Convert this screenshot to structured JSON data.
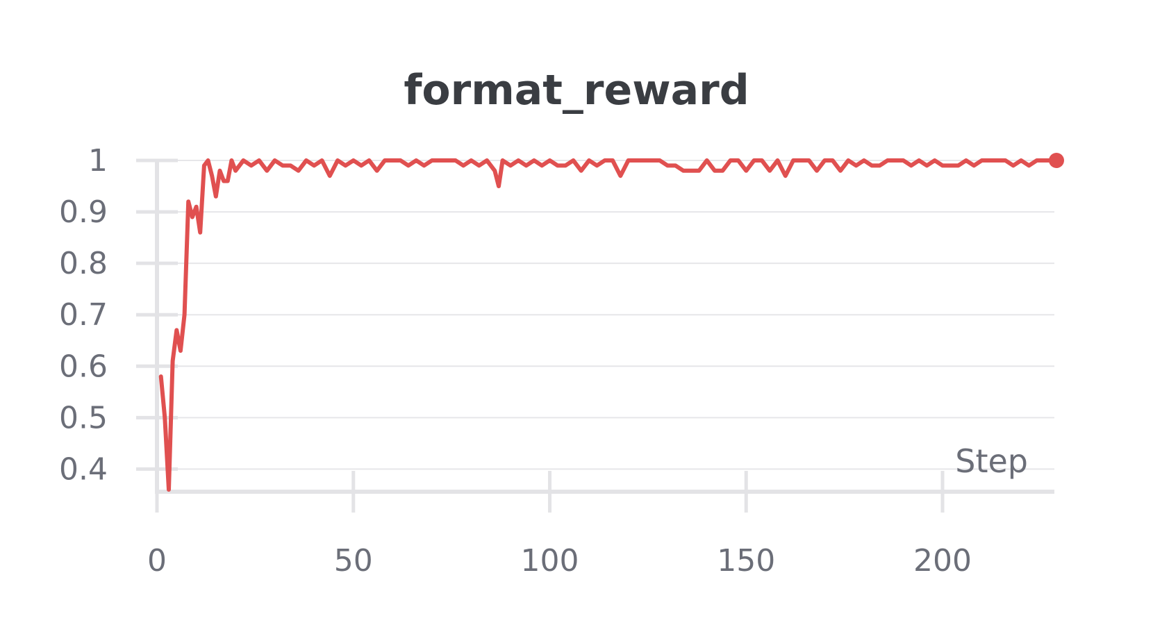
{
  "chart_data": {
    "type": "line",
    "title": "format_reward",
    "xlabel": "Step",
    "ylabel": "",
    "xlim": [
      0,
      229
    ],
    "ylim": [
      0.36,
      1
    ],
    "x_ticks": [
      0,
      50,
      100,
      150,
      200
    ],
    "y_ticks": [
      0.4,
      0.5,
      0.6,
      0.7,
      0.8,
      0.9,
      1
    ],
    "y_tick_labels": [
      "0.4",
      "0.5",
      "0.6",
      "0.7",
      "0.8",
      "0.9",
      "1"
    ],
    "grid": true,
    "legend": "none",
    "series": [
      {
        "color": "#e05050",
        "x": [
          1,
          2,
          3,
          4,
          5,
          6,
          7,
          8,
          9,
          10,
          11,
          12,
          13,
          14,
          15,
          16,
          17,
          18,
          19,
          20,
          22,
          24,
          26,
          28,
          30,
          32,
          34,
          36,
          38,
          40,
          42,
          44,
          46,
          48,
          50,
          52,
          54,
          56,
          58,
          60,
          62,
          64,
          66,
          68,
          70,
          72,
          74,
          76,
          78,
          80,
          82,
          84,
          86,
          87,
          88,
          90,
          92,
          94,
          96,
          98,
          100,
          102,
          104,
          106,
          108,
          110,
          112,
          114,
          116,
          118,
          120,
          122,
          124,
          126,
          128,
          130,
          132,
          134,
          136,
          138,
          140,
          142,
          144,
          146,
          148,
          150,
          152,
          154,
          156,
          158,
          160,
          162,
          164,
          166,
          168,
          170,
          172,
          174,
          176,
          178,
          180,
          182,
          184,
          186,
          188,
          190,
          192,
          194,
          196,
          198,
          200,
          202,
          204,
          206,
          208,
          210,
          212,
          214,
          216,
          218,
          220,
          222,
          224,
          226,
          228,
          229
        ],
        "values": [
          0.58,
          0.5,
          0.36,
          0.61,
          0.67,
          0.63,
          0.7,
          0.92,
          0.89,
          0.91,
          0.86,
          0.99,
          1.0,
          0.97,
          0.93,
          0.98,
          0.96,
          0.96,
          1.0,
          0.98,
          1.0,
          0.99,
          1.0,
          0.98,
          1.0,
          0.99,
          0.99,
          0.98,
          1.0,
          0.99,
          1.0,
          0.97,
          1.0,
          0.99,
          1.0,
          0.99,
          1.0,
          0.98,
          1.0,
          1.0,
          1.0,
          0.99,
          1.0,
          0.99,
          1.0,
          1.0,
          1.0,
          1.0,
          0.99,
          1.0,
          0.99,
          1.0,
          0.98,
          0.95,
          1.0,
          0.99,
          1.0,
          0.99,
          1.0,
          0.99,
          1.0,
          0.99,
          0.99,
          1.0,
          0.98,
          1.0,
          0.99,
          1.0,
          1.0,
          0.97,
          1.0,
          1.0,
          1.0,
          1.0,
          1.0,
          0.99,
          0.99,
          0.98,
          0.98,
          0.98,
          1.0,
          0.98,
          0.98,
          1.0,
          1.0,
          0.98,
          1.0,
          1.0,
          0.98,
          1.0,
          0.97,
          1.0,
          1.0,
          1.0,
          0.98,
          1.0,
          1.0,
          0.98,
          1.0,
          0.99,
          1.0,
          0.99,
          0.99,
          1.0,
          1.0,
          1.0,
          0.99,
          1.0,
          0.99,
          1.0,
          0.99,
          0.99,
          0.99,
          1.0,
          0.99,
          1.0,
          1.0,
          1.0,
          1.0,
          0.99,
          1.0,
          0.99,
          1.0,
          1.0,
          1.0,
          1.0
        ]
      }
    ]
  }
}
